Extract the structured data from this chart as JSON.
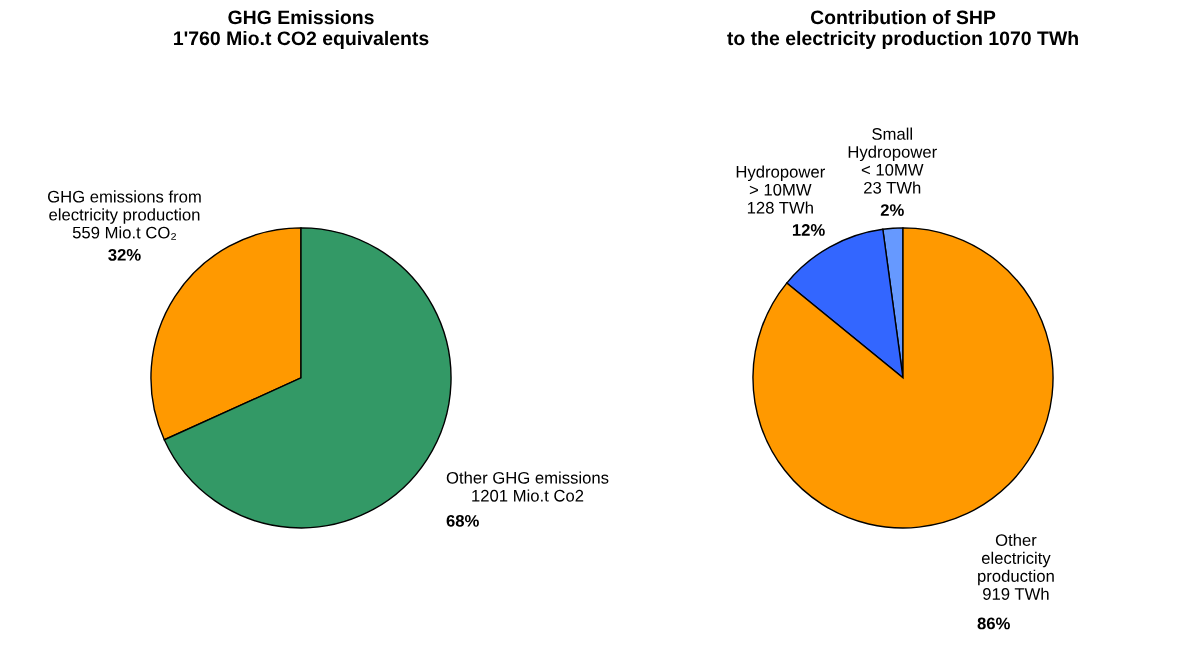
{
  "chart_data": [
    {
      "type": "pie",
      "title": "GHG Emissions\n1'760 Mio.t CO2 equivalents",
      "categories": [
        "GHG emissions from\nelectricity production",
        "Other GHG emissions"
      ],
      "values": [
        559,
        1201
      ],
      "colors": [
        "#ff9900",
        "#339966"
      ],
      "value_labels": [
        "559 Mio.t CO₂",
        "1201 Mio.t Co2"
      ],
      "annotations": [
        {
          "text": "32%",
          "x": "GHG emissions from\nelectricity production"
        },
        {
          "text": "68%",
          "x": "Other GHG emissions"
        }
      ]
    },
    {
      "type": "pie",
      "title": "Contribution of SHP\nto the electricity production 1070 TWh",
      "categories": [
        "Small\nHydropower\n< 10MW",
        "Hydropower\n> 10MW",
        "Other\nelectricity\nproduction"
      ],
      "values": [
        23,
        128,
        919
      ],
      "colors": [
        "#6699ff",
        "#3366ff",
        "#ff9900"
      ],
      "value_labels": [
        "23 TWh",
        "128 TWh",
        "919 TWh"
      ],
      "annotations": [
        {
          "text": "2%",
          "x": "Small\nHydropower\n< 10MW"
        },
        {
          "text": "12%",
          "x": "Hydropower\n> 10MW"
        },
        {
          "text": "86%",
          "x": "Other\nelectricity\nproduction"
        }
      ]
    }
  ]
}
